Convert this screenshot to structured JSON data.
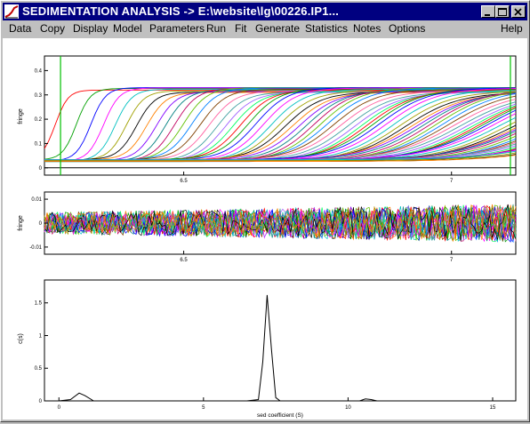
{
  "window": {
    "title": "SEDIMENTATION ANALYSIS -> E:\\website\\lg\\00226.IP1...",
    "minimize_icon": "minimize-icon",
    "maximize_icon": "maximize-icon",
    "close_icon": "close-icon"
  },
  "menu": {
    "items": [
      "Data",
      "Copy",
      "Display",
      "Model",
      "Parameters",
      "Run",
      "Fit",
      "Generate",
      "Statistics",
      "Notes",
      "Options"
    ],
    "help": "Help"
  },
  "chart_data": [
    {
      "type": "line",
      "name": "sedimentation-boundaries",
      "ylabel": "fringe",
      "xlabel": "",
      "xlim": [
        6.24,
        7.12
      ],
      "ylim": [
        -0.03,
        0.46
      ],
      "xticks": [
        "6.5",
        "7"
      ],
      "yticks": [
        "0",
        "0.1",
        "0.2",
        "0.3",
        "0.4"
      ],
      "scan_count": 80,
      "plateau": 0.32,
      "meniscus_marker": 6.27,
      "bottom_marker": 7.11
    },
    {
      "type": "line",
      "name": "residuals",
      "ylabel": "fringe",
      "xlabel": "",
      "xlim": [
        6.24,
        7.12
      ],
      "ylim": [
        -0.013,
        0.013
      ],
      "xticks": [
        "6.5",
        "7"
      ],
      "yticks": [
        "0.01",
        "0",
        "-0.01"
      ]
    },
    {
      "type": "line",
      "name": "c(s) distribution",
      "ylabel": "c(s)",
      "xlabel": "sed coefficient (S)",
      "xlim": [
        -0.5,
        15.8
      ],
      "ylim": [
        0,
        1.85
      ],
      "xticks": [
        "0",
        "5",
        "10",
        "15"
      ],
      "yticks": [
        "0",
        "0.5",
        "1",
        "1.5"
      ],
      "x": [
        0,
        0.4,
        0.7,
        0.9,
        1.2,
        2,
        3,
        4,
        5,
        5.2,
        5.6,
        6,
        6.5,
        6.9,
        7.05,
        7.2,
        7.35,
        7.5,
        7.65,
        7.9,
        8.5,
        9,
        10,
        10.4,
        10.6,
        10.8,
        11,
        12,
        14,
        15.5
      ],
      "y": [
        0,
        0.02,
        0.12,
        0.08,
        0,
        0,
        0,
        0,
        0,
        0,
        0,
        0,
        0,
        0.02,
        0.6,
        1.62,
        0.8,
        0.05,
        0,
        0,
        0,
        0,
        0,
        0,
        0.03,
        0.02,
        0,
        0,
        0,
        0
      ]
    }
  ]
}
